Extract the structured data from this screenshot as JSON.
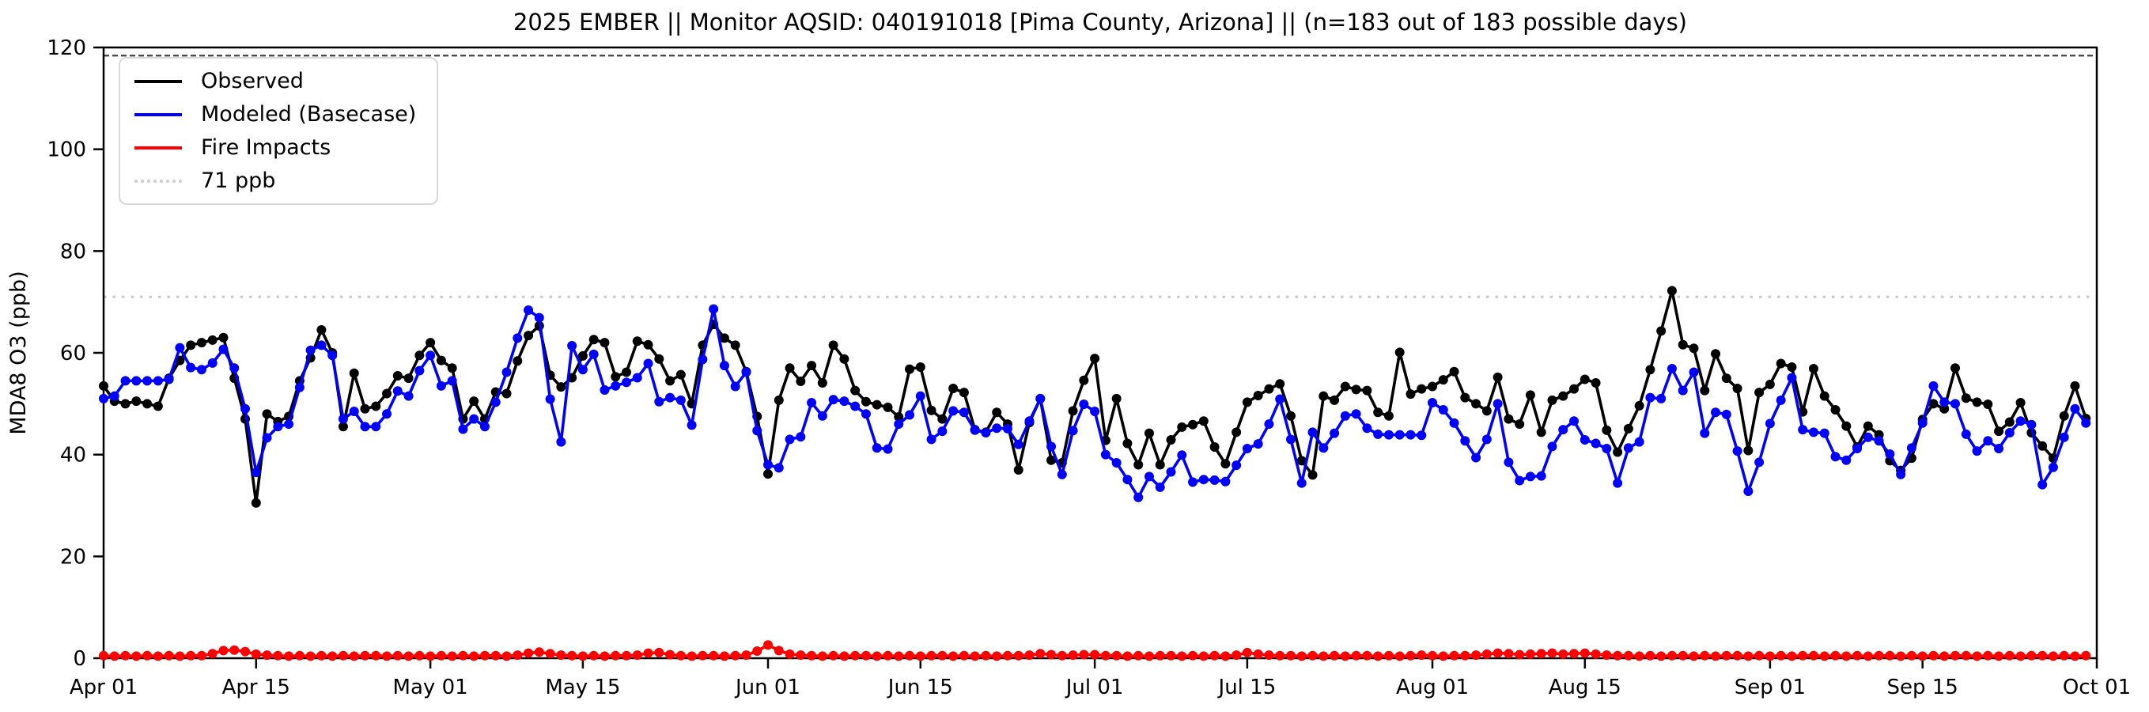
{
  "title": "2025 EMBER || Monitor AQSID: 040191018 [Pima County, Arizona] || (n=183 out of 183 possible days)",
  "y_axis": {
    "label": "MDA8 O3 (ppb)",
    "ticks": [
      0,
      20,
      40,
      60,
      80,
      100,
      120
    ],
    "min": 0,
    "max": 120
  },
  "x_axis": {
    "tick_days": [
      0,
      14,
      30,
      44,
      61,
      75,
      91,
      105,
      122,
      136,
      153,
      167,
      183
    ],
    "tick_labels": [
      "Apr 01",
      "Apr 15",
      "May 01",
      "May 15",
      "Jun 01",
      "Jun 15",
      "Jul 01",
      "Jul 15",
      "Aug 01",
      "Aug 15",
      "Sep 01",
      "Sep 15",
      "Oct 01"
    ]
  },
  "legend": [
    {
      "label": "Observed",
      "color": "#000000",
      "style": "solid"
    },
    {
      "label": "Modeled (Basecase)",
      "color": "#0000ff",
      "style": "solid"
    },
    {
      "label": "Fire Impacts",
      "color": "#ff0000",
      "style": "solid"
    },
    {
      "label": "71 ppb",
      "color": "#cccccc",
      "style": "dotted"
    }
  ],
  "chart_data": {
    "type": "line",
    "n_days": 183,
    "x_range_days": [
      0,
      183
    ],
    "ylim": [
      0,
      120
    ],
    "grid": false,
    "legend_position": "upper-left",
    "threshold": {
      "value": 71,
      "label": "71 ppb",
      "color": "#c9c9c9"
    },
    "top_dashed_line": {
      "value": 118.4,
      "color": "#3a3a3a"
    },
    "series": [
      {
        "name": "Observed",
        "color": "#000000",
        "values": [
          53.5,
          50.5,
          50,
          50.5,
          50,
          49.5,
          55,
          58.5,
          61.5,
          62,
          62.5,
          63,
          55,
          47,
          30.5,
          48,
          46.5,
          47.5,
          54.5,
          59,
          64.5,
          60,
          45.5,
          56,
          49,
          49.5,
          52,
          55.5,
          55,
          59.5,
          62,
          58.5,
          57,
          47,
          50.5,
          47,
          52.3,
          52,
          58.4,
          63.4,
          65.3,
          55.6,
          53.3,
          55.1,
          59.4,
          62.6,
          62,
          55.3,
          56.2,
          62.3,
          61.6,
          58.8,
          54.5,
          55.7,
          50,
          61.5,
          65.6,
          62.9,
          61.5,
          56.3,
          47.5,
          36.2,
          50.7,
          57,
          54.4,
          57.5,
          54.1,
          61.5,
          58.8,
          52.6,
          50.4,
          49.8,
          49.3,
          47.4,
          56.8,
          57.2,
          48.7,
          47,
          53,
          52.2,
          44.9,
          44.4,
          48.3,
          46,
          37,
          46.3,
          51,
          38.9,
          38.4,
          48.6,
          54.6,
          58.9,
          42.8,
          51,
          42.2,
          38,
          44.2,
          38,
          42.9,
          45.4,
          45.9,
          46.6,
          41.5,
          38.2,
          44.4,
          50.3,
          51.6,
          52.9,
          53.9,
          47.6,
          38.8,
          36,
          51.5,
          50.7,
          53.4,
          52.8,
          52.6,
          48.3,
          47.6,
          60.1,
          51.9,
          52.9,
          53.4,
          54.7,
          56.3,
          51.2,
          50,
          48.6,
          55.2,
          47,
          46,
          51.7,
          44.4,
          50.7,
          51.5,
          52.9,
          54.8,
          54.1,
          44.8,
          40.5,
          45.1,
          49.6,
          56.7,
          64.3,
          72.2,
          61.6,
          60.9,
          52.6,
          59.8,
          55,
          53,
          40.8,
          52.2,
          53.8,
          57.9,
          57.2,
          48.4,
          56.9,
          51.5,
          48.8,
          45.6,
          41.5,
          45.6,
          43.9,
          38.8,
          36.9,
          39.3,
          46.9,
          50,
          49,
          57,
          51.1,
          50.3,
          49.9,
          44.6,
          46.4,
          50.2,
          44.3,
          41.7,
          39.3,
          47.6,
          53.5,
          47.1
        ]
      },
      {
        "name": "Modeled (Basecase)",
        "color": "#0000ff",
        "values": [
          51,
          51.5,
          54.5,
          54.5,
          54.5,
          54.5,
          54.8,
          61,
          57.1,
          56.7,
          58,
          60.7,
          57,
          49,
          36.5,
          43.3,
          45.5,
          46,
          53.2,
          60.5,
          61.5,
          59.5,
          47,
          48.5,
          45.5,
          45.5,
          48,
          52.5,
          51.5,
          56.5,
          59.5,
          53.5,
          54.5,
          45,
          47,
          45.5,
          50.3,
          56.2,
          62.9,
          68.4,
          66.9,
          50.9,
          42.5,
          61.4,
          56.7,
          59.7,
          52.7,
          53.5,
          54.2,
          55.1,
          57.9,
          50.4,
          51.2,
          50.7,
          45.8,
          58.7,
          68.6,
          57.5,
          53.4,
          56.2,
          44.7,
          38,
          37.4,
          43,
          43.5,
          50.2,
          47.6,
          50.8,
          50.5,
          49.5,
          48,
          41.3,
          41.1,
          46,
          47.8,
          51.5,
          43,
          44.6,
          48.6,
          48.3,
          44.8,
          44.3,
          45.2,
          45.1,
          42,
          46.6,
          51,
          41.6,
          36.1,
          44.7,
          49.9,
          48.5,
          40,
          38.4,
          35.1,
          31.6,
          35.7,
          33.6,
          36.6,
          39.9,
          34.6,
          35.1,
          35,
          34.7,
          37.9,
          41.2,
          42.1,
          46,
          50.9,
          43,
          34.4,
          44.4,
          41.3,
          44.2,
          47.6,
          48,
          45.2,
          44,
          43.9,
          43.9,
          43.9,
          43.8,
          50.2,
          48.8,
          46.2,
          42.7,
          39.4,
          43,
          50,
          38.5,
          34.9,
          35.7,
          35.8,
          41.6,
          44.9,
          46.6,
          42.9,
          42.2,
          41.2,
          34.4,
          41.3,
          42.5,
          51.2,
          51,
          56.9,
          52.6,
          56.2,
          44.2,
          48.3,
          47.9,
          40.7,
          32.8,
          38.5,
          46.1,
          50.7,
          55.1,
          44.9,
          44.4,
          44.2,
          39.6,
          38.9,
          41.2,
          43.4,
          42.7,
          40.1,
          36.1,
          41.3,
          46.2,
          53.5,
          50.3,
          50,
          44,
          40.7,
          42.7,
          41.2,
          44.3,
          46.6,
          45.9,
          34.1,
          37.5,
          43.4,
          49,
          46.2
        ]
      },
      {
        "name": "Fire Impacts",
        "color": "#ff0000",
        "values": [
          0.5,
          0.4,
          0.5,
          0.4,
          0.5,
          0.4,
          0.5,
          0.4,
          0.5,
          0.5,
          0.9,
          1.5,
          1.6,
          1.3,
          0.8,
          0.6,
          0.5,
          0.4,
          0.5,
          0.4,
          0.5,
          0.4,
          0.5,
          0.4,
          0.5,
          0.5,
          0.4,
          0.5,
          0.4,
          0.5,
          0.4,
          0.5,
          0.4,
          0.5,
          0.4,
          0.5,
          0.5,
          0.4,
          0.6,
          1.0,
          1.2,
          0.9,
          0.6,
          0.5,
          0.4,
          0.5,
          0.4,
          0.5,
          0.5,
          0.6,
          1.0,
          1.1,
          0.7,
          0.5,
          0.4,
          0.5,
          0.5,
          0.4,
          0.5,
          0.6,
          1.4,
          2.6,
          1.5,
          0.8,
          0.6,
          0.5,
          0.4,
          0.5,
          0.4,
          0.5,
          0.5,
          0.4,
          0.5,
          0.4,
          0.5,
          0.4,
          0.5,
          0.5,
          0.4,
          0.5,
          0.4,
          0.5,
          0.4,
          0.5,
          0.5,
          0.6,
          0.9,
          0.7,
          0.5,
          0.6,
          0.7,
          0.7,
          0.5,
          0.5,
          0.4,
          0.5,
          0.4,
          0.5,
          0.5,
          0.4,
          0.5,
          0.4,
          0.5,
          0.4,
          0.6,
          1.1,
          0.8,
          0.6,
          0.5,
          0.5,
          0.4,
          0.5,
          0.4,
          0.5,
          0.4,
          0.5,
          0.5,
          0.4,
          0.5,
          0.4,
          0.5,
          0.6,
          0.5,
          0.4,
          0.5,
          0.5,
          0.6,
          0.8,
          1.0,
          0.9,
          0.7,
          0.8,
          0.9,
          1.0,
          0.8,
          0.9,
          1.0,
          0.8,
          0.6,
          0.5,
          0.5,
          0.4,
          0.5,
          0.4,
          0.5,
          0.5,
          0.4,
          0.5,
          0.4,
          0.5,
          0.5,
          0.4,
          0.5,
          0.4,
          0.5,
          0.4,
          0.5,
          0.5,
          0.4,
          0.5,
          0.4,
          0.5,
          0.4,
          0.5,
          0.5,
          0.4,
          0.5,
          0.4,
          0.5,
          0.4,
          0.5,
          0.5,
          0.4,
          0.5,
          0.4,
          0.5,
          0.4,
          0.5,
          0.5,
          0.4,
          0.5,
          0.4,
          0.5
        ]
      }
    ]
  }
}
